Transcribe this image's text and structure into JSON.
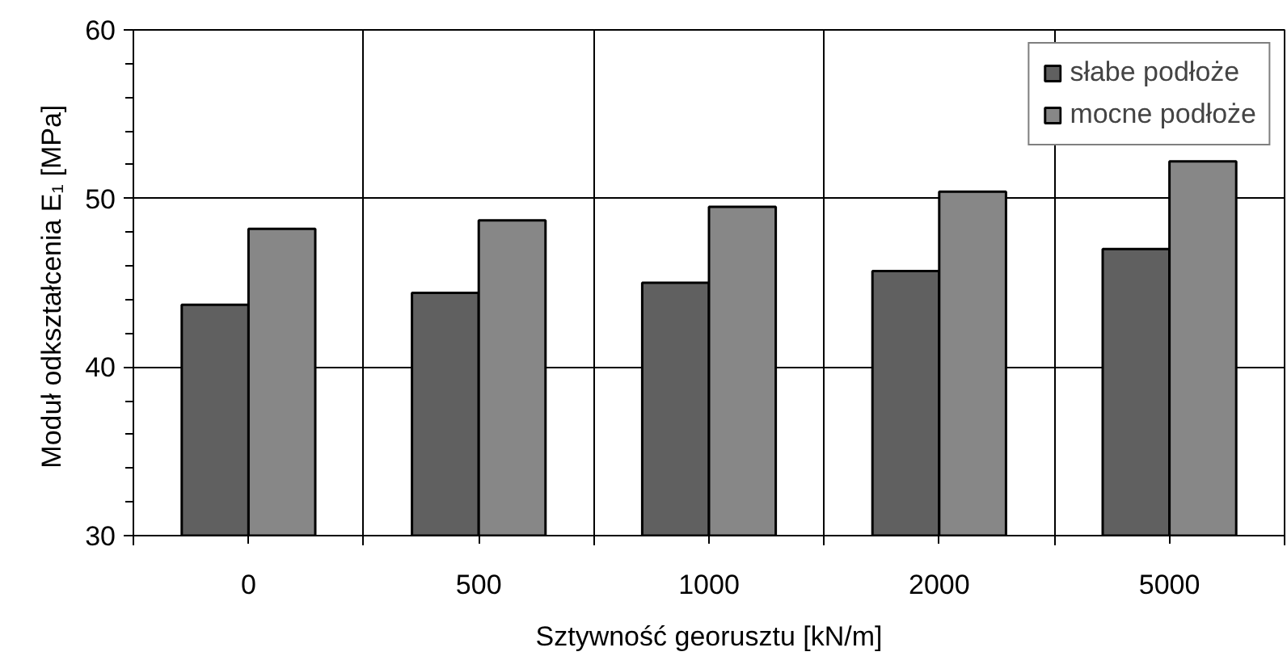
{
  "chart_data": {
    "type": "bar",
    "categories": [
      "0",
      "500",
      "1000",
      "2000",
      "5000"
    ],
    "xlabel": "Sztywność georusztu [kN/m]",
    "ylabel": "Moduł odkształcenia E₁  [MPa]",
    "series": [
      {
        "name": "słabe podłoże",
        "color": "#606060",
        "values": [
          43.7,
          44.4,
          45.0,
          45.7,
          47.0
        ]
      },
      {
        "name": "mocne podłoże",
        "color": "#878787",
        "values": [
          48.2,
          48.7,
          49.5,
          50.4,
          52.2
        ]
      }
    ],
    "ylim": [
      30,
      60
    ],
    "yticks": [
      30,
      {
        "value": 32,
        "label": null
      },
      {
        "value": 34,
        "label": null
      },
      {
        "value": 36,
        "label": null
      },
      {
        "value": 38,
        "label": null
      },
      40,
      {
        "value": 42,
        "label": null
      },
      {
        "value": 44,
        "label": null
      },
      {
        "value": 46,
        "label": null
      },
      {
        "value": 48,
        "label": null
      },
      50,
      {
        "value": 52,
        "label": null
      },
      {
        "value": 54,
        "label": null
      },
      {
        "value": 56,
        "label": null
      },
      {
        "value": 58,
        "label": null
      },
      60
    ],
    "grid": true,
    "legend": "top right"
  }
}
